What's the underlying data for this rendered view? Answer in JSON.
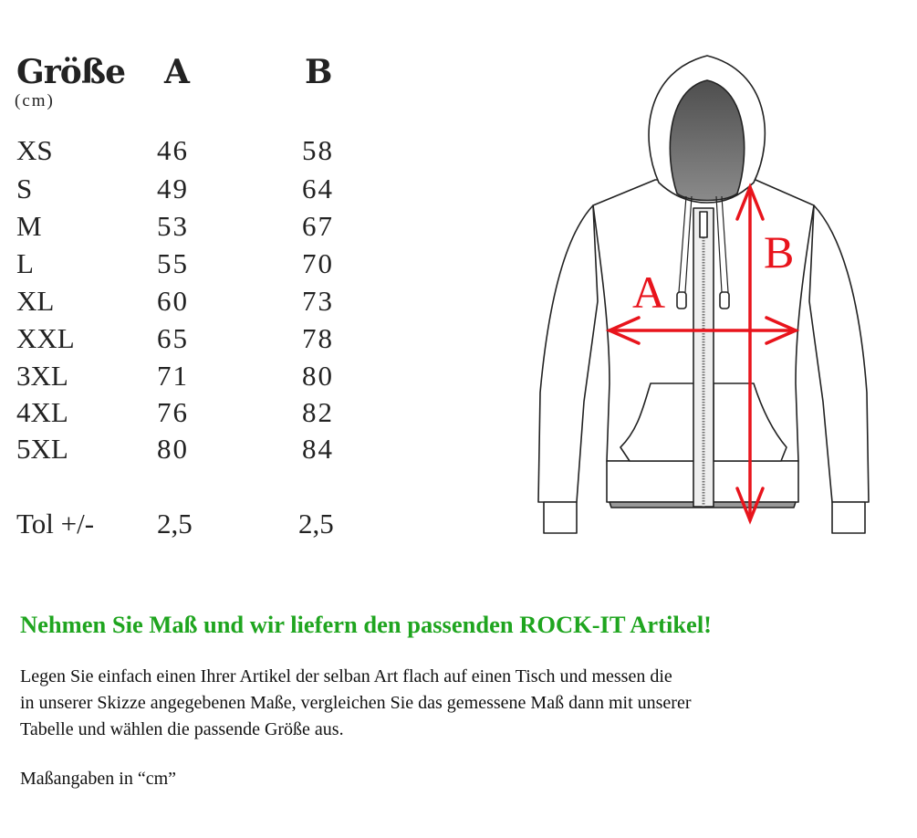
{
  "table": {
    "header": {
      "size": "Größe",
      "unit": "(cm)",
      "a": "A",
      "b": "B"
    },
    "rows": [
      {
        "size": "XS",
        "a": "46",
        "b": "58"
      },
      {
        "size": "S",
        "a": "49",
        "b": "64"
      },
      {
        "size": "M",
        "a": "53",
        "b": "67"
      },
      {
        "size": "L",
        "a": "55",
        "b": "70"
      },
      {
        "size": "XL",
        "a": "60",
        "b": "73"
      },
      {
        "size": "XXL",
        "a": "65",
        "b": "78"
      },
      {
        "size": "3XL",
        "a": "71",
        "b": "80"
      },
      {
        "size": "4XL",
        "a": "76",
        "b": "82"
      },
      {
        "size": "5XL",
        "a": "80",
        "b": "84"
      }
    ],
    "tolerance": {
      "label": "Tol +/-",
      "a": "2,5",
      "b": "2,5"
    }
  },
  "diagram": {
    "label_a": "A",
    "label_b": "B",
    "arrow_color": "#e8141c"
  },
  "text": {
    "headline": "Nehmen Sie Maß und wir liefern den passenden ROCK-IT Artikel!",
    "headline_color": "#1fa51f",
    "paragraph_lines": [
      "Legen Sie einfach einen Ihrer Artikel der selban Art flach auf einen Tisch und messen die",
      "in unserer Skizze angegebenen Maße, vergleichen Sie das gemessene Maß dann mit unserer",
      "Tabelle und wählen die passende Größe aus."
    ],
    "note": "Maßangaben in “cm”"
  }
}
